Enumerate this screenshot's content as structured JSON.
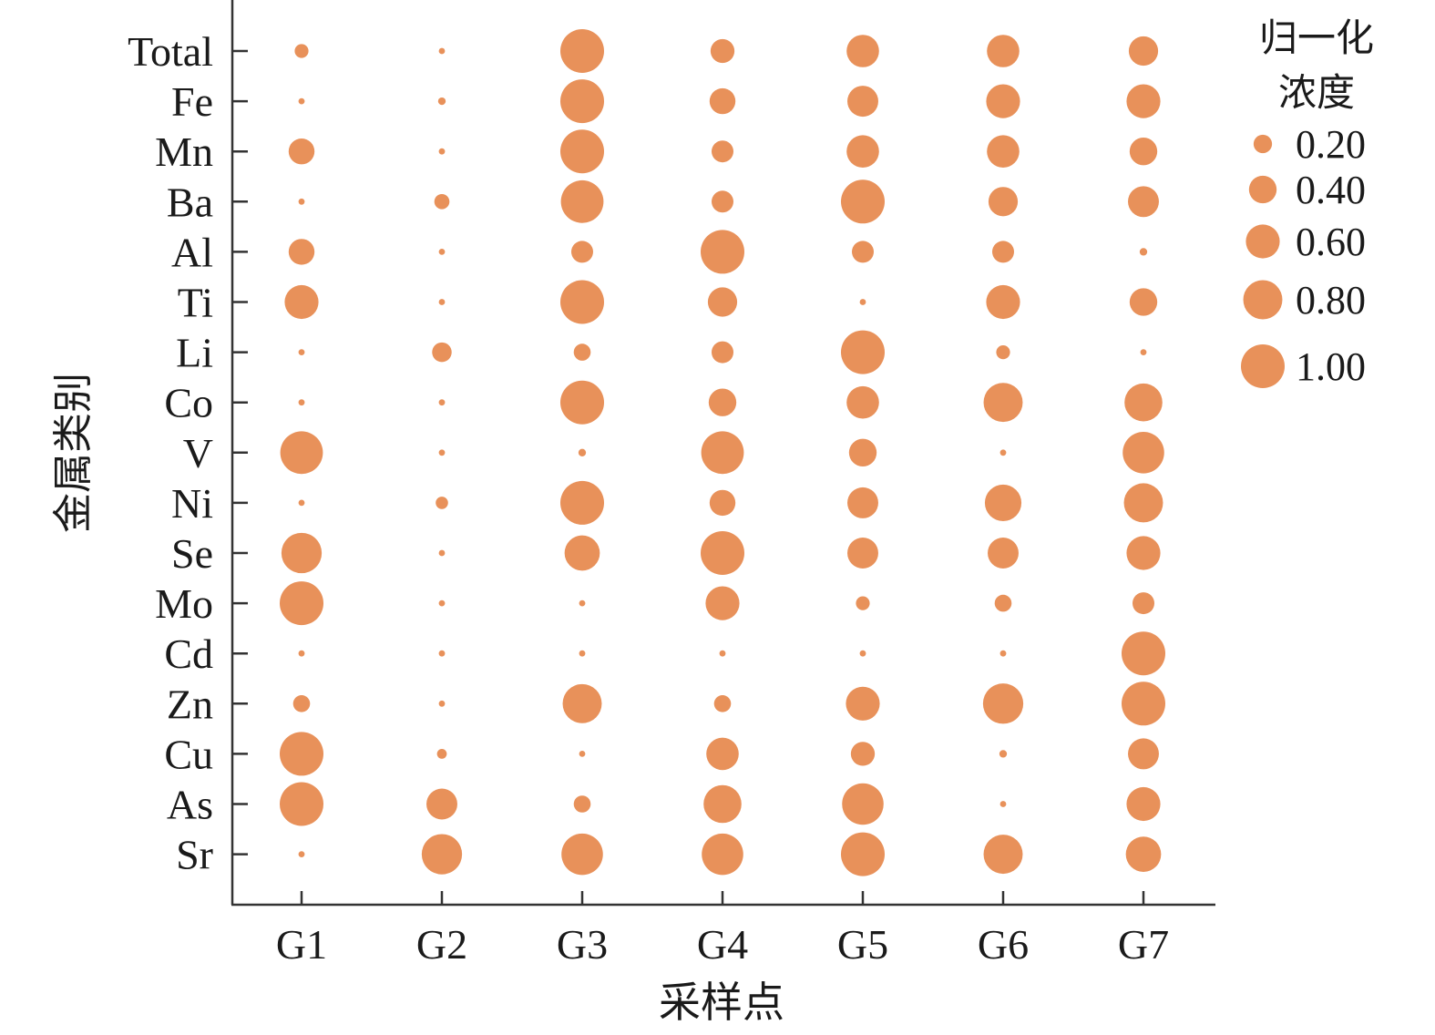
{
  "chart_data": {
    "type": "scatter",
    "subtype": "bubble",
    "title": "",
    "xlabel": "采样点",
    "ylabel": "金属类别",
    "x_categories": [
      "G1",
      "G2",
      "G3",
      "G4",
      "G5",
      "G6",
      "G7"
    ],
    "y_categories": [
      "Total",
      "Fe",
      "Mn",
      "Ba",
      "Al",
      "Ti",
      "Li",
      "Co",
      "V",
      "Ni",
      "Se",
      "Mo",
      "Cd",
      "Zn",
      "Cu",
      "As",
      "Sr"
    ],
    "size_variable": "归一化浓度",
    "values": [
      [
        0.1,
        0.02,
        1.0,
        0.3,
        0.55,
        0.55,
        0.45
      ],
      [
        0.02,
        0.03,
        1.0,
        0.35,
        0.5,
        0.6,
        0.6
      ],
      [
        0.35,
        0.02,
        1.0,
        0.25,
        0.55,
        0.55,
        0.4
      ],
      [
        0.02,
        0.12,
        0.95,
        0.25,
        1.0,
        0.45,
        0.5
      ],
      [
        0.35,
        0.02,
        0.25,
        1.0,
        0.25,
        0.25,
        0.03
      ],
      [
        0.6,
        0.02,
        1.0,
        0.45,
        0.02,
        0.6,
        0.4
      ],
      [
        0.02,
        0.2,
        0.15,
        0.25,
        1.0,
        0.1,
        0.02
      ],
      [
        0.02,
        0.02,
        1.0,
        0.4,
        0.55,
        0.8,
        0.75
      ],
      [
        0.95,
        0.02,
        0.03,
        0.95,
        0.4,
        0.02,
        0.9
      ],
      [
        0.02,
        0.08,
        1.0,
        0.35,
        0.5,
        0.7,
        0.8
      ],
      [
        0.85,
        0.02,
        0.65,
        1.0,
        0.5,
        0.5,
        0.6
      ],
      [
        1.0,
        0.02,
        0.02,
        0.6,
        0.1,
        0.15,
        0.25
      ],
      [
        0.02,
        0.02,
        0.02,
        0.02,
        0.02,
        0.02,
        1.0
      ],
      [
        0.15,
        0.02,
        0.8,
        0.15,
        0.6,
        0.85,
        1.0
      ],
      [
        1.0,
        0.05,
        0.02,
        0.55,
        0.3,
        0.03,
        0.5
      ],
      [
        1.0,
        0.5,
        0.15,
        0.75,
        0.9,
        0.02,
        0.6
      ],
      [
        0.02,
        0.85,
        0.9,
        0.9,
        1.0,
        0.8,
        0.65
      ]
    ],
    "legend": {
      "title_lines": [
        "归一化",
        "浓度"
      ],
      "values": [
        0.2,
        0.4,
        0.6,
        0.8,
        1.0
      ],
      "labels": [
        "0.20",
        "0.40",
        "0.60",
        "0.80",
        "1.00"
      ],
      "placement": "right"
    },
    "marker_color": "#e8915a",
    "axis_color": "#333333",
    "grid": false
  }
}
